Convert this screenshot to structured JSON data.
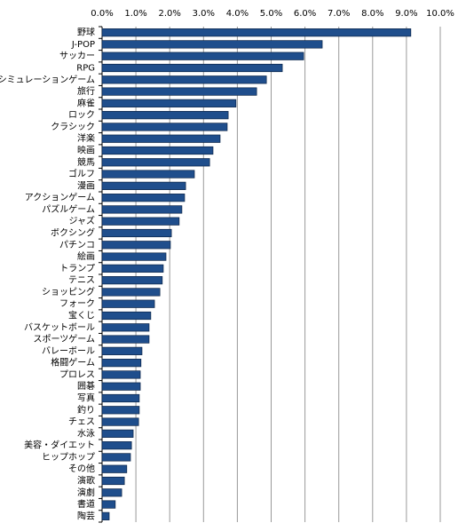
{
  "chart_data": {
    "type": "barh",
    "categories": [
      "野球",
      "J-POP",
      "サッカー",
      "RPG",
      "シミュレーションゲーム",
      "旅行",
      "麻雀",
      "ロック",
      "クラシック",
      "洋楽",
      "映画",
      "競馬",
      "ゴルフ",
      "漫画",
      "アクションゲーム",
      "パズルゲーム",
      "ジャズ",
      "ボクシング",
      "パチンコ",
      "絵画",
      "トランプ",
      "テニス",
      "ショッピング",
      "フォーク",
      "宝くじ",
      "バスケットボール",
      "スポーツゲーム",
      "バレーボール",
      "格闘ゲーム",
      "プロレス",
      "囲碁",
      "写真",
      "釣り",
      "チェス",
      "水泳",
      "美容・ダイエット",
      "ヒップホップ",
      "その他",
      "演歌",
      "演劇",
      "書道",
      "陶芸"
    ],
    "values": [
      9.13,
      6.51,
      5.96,
      5.33,
      4.86,
      4.57,
      3.96,
      3.73,
      3.7,
      3.49,
      3.28,
      3.18,
      2.73,
      2.47,
      2.44,
      2.36,
      2.28,
      2.05,
      2.02,
      1.89,
      1.81,
      1.78,
      1.71,
      1.55,
      1.44,
      1.39,
      1.39,
      1.18,
      1.15,
      1.13,
      1.13,
      1.1,
      1.1,
      1.08,
      0.92,
      0.87,
      0.84,
      0.73,
      0.66,
      0.58,
      0.39,
      0.21
    ],
    "color": "#1f4e8c",
    "xlim": [
      0,
      10
    ],
    "xticks": [
      {
        "value": 0,
        "label": "0.0%"
      },
      {
        "value": 1,
        "label": "1.0%"
      },
      {
        "value": 2,
        "label": "2.0%"
      },
      {
        "value": 3,
        "label": "3.0%"
      },
      {
        "value": 4,
        "label": "4.0%"
      },
      {
        "value": 5,
        "label": "5.0%"
      },
      {
        "value": 6,
        "label": "6.0%"
      },
      {
        "value": 7,
        "label": "7.0%"
      },
      {
        "value": 8,
        "label": "8.0%"
      },
      {
        "value": 9,
        "label": "9.0%"
      },
      {
        "value": 10,
        "label": "10.0%"
      }
    ],
    "grid": true
  }
}
